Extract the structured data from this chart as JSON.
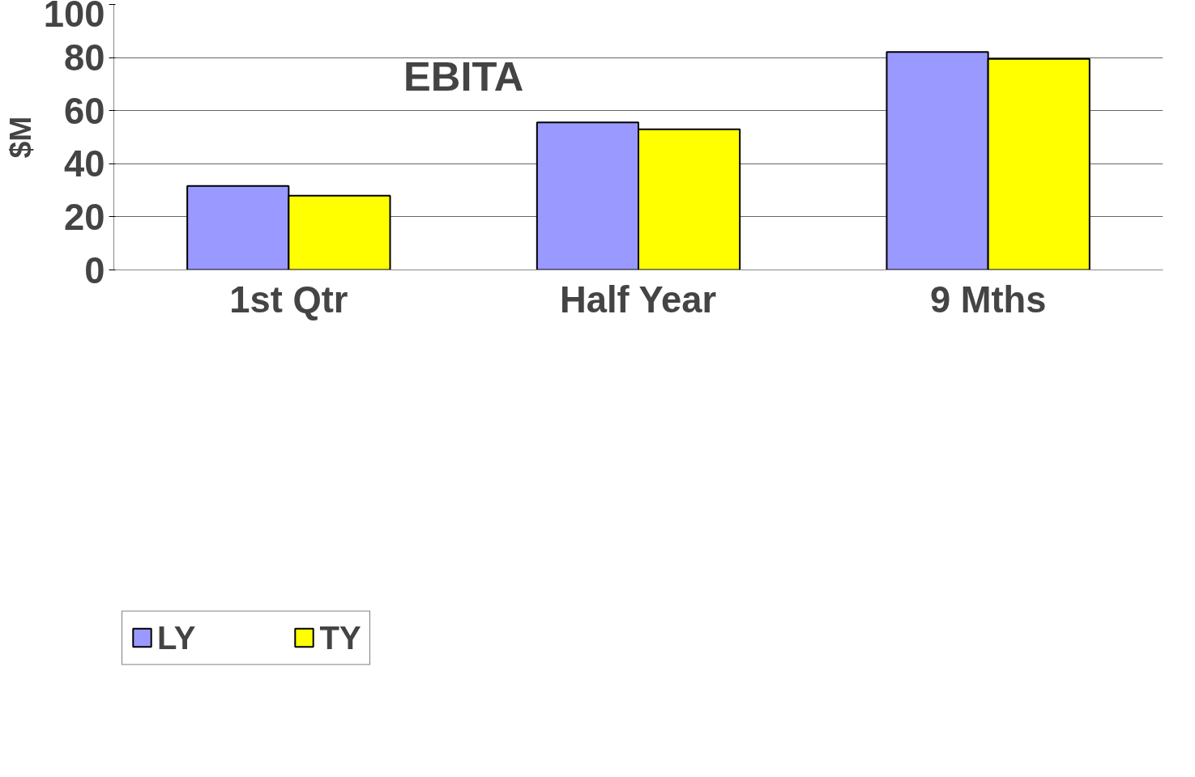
{
  "chart_data": {
    "type": "bar",
    "title": "EBITA",
    "ylabel": "$M",
    "categories": [
      "1st Qtr",
      "Half Year",
      "9 Mths"
    ],
    "series": [
      {
        "name": "LY",
        "color": "#9999ff",
        "values": [
          31.6,
          55.6,
          82.1
        ]
      },
      {
        "name": "TY",
        "color": "#ffff00",
        "values": [
          28.0,
          53.0,
          79.5
        ]
      }
    ],
    "ylim": [
      0,
      100
    ],
    "yticks": [
      0,
      20,
      40,
      60,
      80,
      100
    ],
    "grid": "y",
    "legend": "bottom left"
  }
}
